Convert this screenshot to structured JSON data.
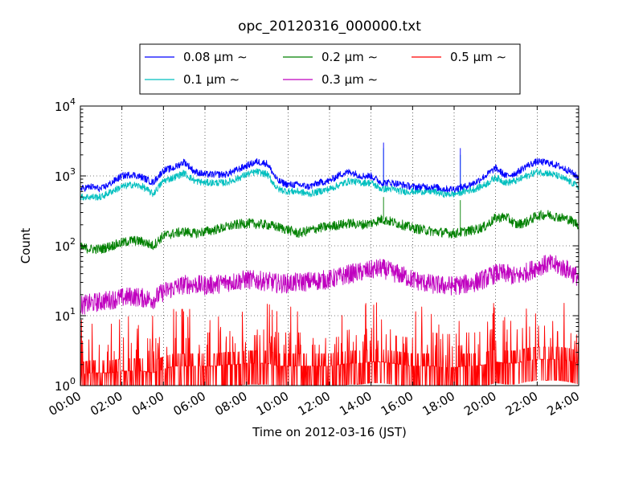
{
  "chart_data": {
    "type": "line",
    "title": "opc_20120316_000000.txt",
    "xlabel": "Time on 2012-03-16 (JST)",
    "ylabel": "Count",
    "x_ticks": [
      "00:00",
      "02:00",
      "04:00",
      "06:00",
      "08:00",
      "10:00",
      "12:00",
      "14:00",
      "16:00",
      "18:00",
      "20:00",
      "22:00",
      "24:00"
    ],
    "xlim": [
      0,
      24
    ],
    "y_scale": "log",
    "ylim": [
      1,
      10000
    ],
    "y_ticks": [
      {
        "base": "10",
        "exp": "0",
        "value": 1
      },
      {
        "base": "10",
        "exp": "1",
        "value": 10
      },
      {
        "base": "10",
        "exp": "2",
        "value": 100
      },
      {
        "base": "10",
        "exp": "3",
        "value": 1000
      },
      {
        "base": "10",
        "exp": "4",
        "value": 10000
      }
    ],
    "grid": true,
    "legend_position": "top",
    "series": [
      {
        "name": "0.08 μm ∼",
        "color": "#0000ff",
        "x": [
          0,
          0.5,
          1,
          1.5,
          2,
          2.5,
          3,
          3.5,
          4,
          4.5,
          5,
          5.5,
          6,
          6.5,
          7,
          7.5,
          8,
          8.5,
          9,
          9.5,
          10,
          10.5,
          11,
          11.5,
          12,
          12.5,
          13,
          13.5,
          14,
          14.5,
          15,
          15.5,
          16,
          16.5,
          17,
          17.5,
          18,
          18.5,
          19,
          19.5,
          20,
          20.5,
          21,
          21.5,
          22,
          22.5,
          23,
          23.5,
          24
        ],
        "y": [
          650,
          700,
          650,
          800,
          1000,
          1050,
          950,
          800,
          1200,
          1300,
          1600,
          1150,
          1050,
          1050,
          1050,
          1200,
          1400,
          1600,
          1500,
          850,
          750,
          750,
          700,
          800,
          850,
          1050,
          1150,
          1000,
          1000,
          800,
          800,
          750,
          700,
          700,
          700,
          650,
          650,
          700,
          800,
          1000,
          1300,
          1000,
          1100,
          1400,
          1600,
          1550,
          1400,
          1200,
          950
        ],
        "spikes": [
          {
            "x": 14.6,
            "y": 3000
          },
          {
            "x": 18.3,
            "y": 2500
          }
        ]
      },
      {
        "name": "0.1 μm ∼",
        "color": "#00bfbf",
        "x": [
          0,
          0.5,
          1,
          1.5,
          2,
          2.5,
          3,
          3.5,
          4,
          4.5,
          5,
          5.5,
          6,
          6.5,
          7,
          7.5,
          8,
          8.5,
          9,
          9.5,
          10,
          10.5,
          11,
          11.5,
          12,
          12.5,
          13,
          13.5,
          14,
          14.5,
          15,
          15.5,
          16,
          16.5,
          17,
          17.5,
          18,
          18.5,
          19,
          19.5,
          20,
          20.5,
          21,
          21.5,
          22,
          22.5,
          23,
          23.5,
          24
        ],
        "y": [
          500,
          500,
          500,
          600,
          700,
          750,
          700,
          550,
          850,
          950,
          1100,
          850,
          800,
          800,
          800,
          900,
          1050,
          1150,
          1050,
          650,
          600,
          600,
          550,
          600,
          650,
          750,
          850,
          800,
          800,
          650,
          650,
          600,
          600,
          600,
          600,
          550,
          550,
          600,
          650,
          750,
          950,
          800,
          850,
          1000,
          1150,
          1100,
          1000,
          850,
          700
        ],
        "spikes": [
          {
            "x": 14.6,
            "y": 2500
          },
          {
            "x": 18.3,
            "y": 2000
          }
        ]
      },
      {
        "name": "0.2 μm ∼",
        "color": "#008000",
        "x": [
          0,
          0.5,
          1,
          1.5,
          2,
          2.5,
          3,
          3.5,
          4,
          4.5,
          5,
          5.5,
          6,
          6.5,
          7,
          7.5,
          8,
          8.5,
          9,
          9.5,
          10,
          10.5,
          11,
          11.5,
          12,
          12.5,
          13,
          13.5,
          14,
          14.5,
          15,
          15.5,
          16,
          16.5,
          17,
          17.5,
          18,
          18.5,
          19,
          19.5,
          20,
          20.5,
          21,
          21.5,
          22,
          22.5,
          23,
          23.5,
          24
        ],
        "y": [
          95,
          90,
          90,
          100,
          110,
          120,
          115,
          100,
          140,
          150,
          160,
          150,
          160,
          170,
          185,
          200,
          210,
          205,
          200,
          185,
          170,
          150,
          165,
          180,
          190,
          200,
          210,
          200,
          210,
          240,
          220,
          200,
          180,
          170,
          160,
          155,
          150,
          160,
          170,
          190,
          250,
          260,
          200,
          220,
          270,
          280,
          260,
          240,
          200
        ],
        "spikes": [
          {
            "x": 14.6,
            "y": 500
          },
          {
            "x": 18.3,
            "y": 450
          }
        ]
      },
      {
        "name": "0.3 μm ∼",
        "color": "#bf00bf",
        "x": [
          0,
          0.5,
          1,
          1.5,
          2,
          2.5,
          3,
          3.5,
          4,
          4.5,
          5,
          5.5,
          6,
          6.5,
          7,
          7.5,
          8,
          8.5,
          9,
          9.5,
          10,
          10.5,
          11,
          11.5,
          12,
          12.5,
          13,
          13.5,
          14,
          14.5,
          15,
          15.5,
          16,
          16.5,
          17,
          17.5,
          18,
          18.5,
          19,
          19.5,
          20,
          20.5,
          21,
          21.5,
          22,
          22.5,
          23,
          23.5,
          24
        ],
        "y": [
          14,
          15,
          16,
          17,
          18,
          19,
          18,
          17,
          22,
          25,
          28,
          28,
          27,
          28,
          30,
          31,
          33,
          32,
          31,
          29,
          29,
          30,
          31,
          32,
          33,
          36,
          40,
          42,
          45,
          48,
          42,
          38,
          33,
          30,
          28,
          27,
          27,
          28,
          30,
          34,
          40,
          40,
          36,
          42,
          50,
          55,
          52,
          45,
          35
        ],
        "spikes": [
          {
            "x": 14.6,
            "y": 60
          }
        ]
      },
      {
        "name": "0.5 μm ∼",
        "color": "#ff0000",
        "x": [
          0,
          0.5,
          1,
          1.5,
          2,
          2.5,
          3,
          3.5,
          4,
          4.5,
          5,
          5.5,
          6,
          6.5,
          7,
          7.5,
          8,
          8.5,
          9,
          9.5,
          10,
          10.5,
          11,
          11.5,
          12,
          12.5,
          13,
          13.5,
          14,
          14.5,
          15,
          15.5,
          16,
          16.5,
          17,
          17.5,
          18,
          18.5,
          19,
          19.5,
          20,
          20.5,
          21,
          21.5,
          22,
          22.5,
          23,
          23.5,
          24
        ],
        "y": [
          1.5,
          1.6,
          1.6,
          1.6,
          1.7,
          1.7,
          1.7,
          1.6,
          1.8,
          2,
          2,
          2,
          2,
          2,
          2.1,
          2.1,
          2.2,
          2.2,
          2.2,
          2,
          2,
          2,
          2,
          2,
          2,
          2.1,
          2.2,
          2.2,
          2.3,
          2.3,
          2.2,
          2.1,
          2,
          2,
          2,
          1.9,
          1.9,
          2,
          2,
          2.1,
          2.3,
          2.2,
          2.2,
          2.4,
          2.5,
          2.5,
          2.5,
          2.4,
          2.2
        ],
        "spikes": []
      }
    ]
  }
}
